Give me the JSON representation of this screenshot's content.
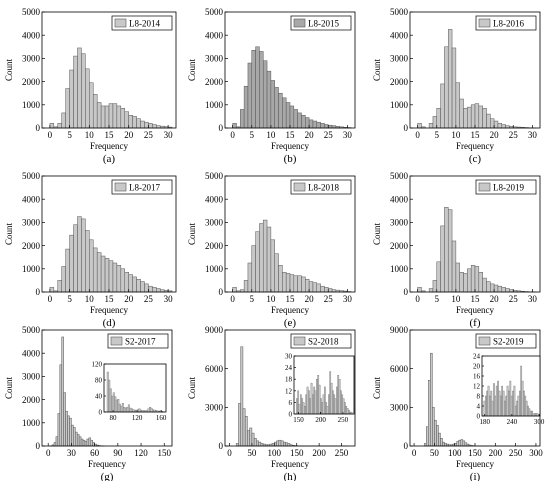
{
  "figure": {
    "background": "#ffffff",
    "bar_fill": "#c8c8c8",
    "bar_fill_dark": "#a8a8a8",
    "bar_stroke": "#555555"
  },
  "chart_data": [
    {
      "type": "bar",
      "panel_label": "(a)",
      "legend": "L8-2014",
      "xlabel": "Frequency",
      "ylabel": "Count",
      "xlim": [
        -2,
        32
      ],
      "xticks": [
        0,
        5,
        10,
        15,
        20,
        25,
        30
      ],
      "ylim": [
        0,
        5000
      ],
      "yticks": [
        0,
        1000,
        2000,
        3000,
        4000,
        5000
      ],
      "bin_start": 0,
      "bin_width": 1,
      "values": [
        200,
        50,
        200,
        650,
        1700,
        2500,
        3100,
        3450,
        3200,
        2550,
        1950,
        1450,
        1100,
        950,
        950,
        1050,
        1050,
        950,
        850,
        700,
        550,
        500,
        400,
        300,
        250,
        200,
        150,
        100,
        80,
        60,
        40
      ],
      "legend_position": "top-right"
    },
    {
      "type": "bar",
      "panel_label": "(b)",
      "legend": "L8-2015",
      "xlabel": "Frequency",
      "ylabel": "Count",
      "xlim": [
        -2,
        32
      ],
      "xticks": [
        0,
        5,
        10,
        15,
        20,
        25,
        30
      ],
      "ylim": [
        0,
        5000
      ],
      "yticks": [
        0,
        1000,
        2000,
        3000,
        4000,
        5000
      ],
      "bin_start": 0,
      "bin_width": 1,
      "values": [
        200,
        50,
        800,
        1800,
        2800,
        3350,
        3500,
        3300,
        2900,
        2450,
        2050,
        1750,
        1500,
        1300,
        1100,
        950,
        800,
        650,
        550,
        450,
        350,
        300,
        250,
        200,
        150,
        120,
        100,
        70,
        50,
        30,
        20
      ],
      "legend_position": "top-right"
    },
    {
      "type": "bar",
      "panel_label": "(c)",
      "legend": "L8-2016",
      "xlabel": "Frequency",
      "ylabel": "Count",
      "xlim": [
        -2,
        32
      ],
      "xticks": [
        0,
        5,
        10,
        15,
        20,
        25,
        30
      ],
      "ylim": [
        0,
        5000
      ],
      "yticks": [
        0,
        1000,
        2000,
        3000,
        4000,
        5000
      ],
      "bin_start": 0,
      "bin_width": 1,
      "values": [
        200,
        50,
        0,
        200,
        500,
        850,
        1900,
        3500,
        4250,
        3450,
        1950,
        1250,
        850,
        900,
        1000,
        1050,
        950,
        850,
        600,
        400,
        300,
        200,
        150,
        100,
        70,
        50,
        40,
        30,
        20,
        10,
        5
      ],
      "legend_position": "top-right"
    },
    {
      "type": "bar",
      "panel_label": "(d)",
      "legend": "L8-2017",
      "xlabel": "Frequency",
      "ylabel": "Count",
      "xlim": [
        -2,
        32
      ],
      "xticks": [
        0,
        5,
        10,
        15,
        20,
        25,
        30
      ],
      "ylim": [
        0,
        5000
      ],
      "yticks": [
        0,
        1000,
        2000,
        3000,
        4000,
        5000
      ],
      "bin_start": 0,
      "bin_width": 1,
      "values": [
        200,
        50,
        500,
        1100,
        1850,
        2450,
        2900,
        3250,
        3150,
        2650,
        2250,
        1900,
        1700,
        1550,
        1450,
        1350,
        1250,
        1150,
        1000,
        850,
        750,
        650,
        550,
        450,
        350,
        250,
        200,
        150,
        100,
        70,
        50
      ],
      "legend_position": "top-right"
    },
    {
      "type": "bar",
      "panel_label": "(e)",
      "legend": "L8-2018",
      "xlabel": "Frequency",
      "ylabel": "Count",
      "xlim": [
        -2,
        32
      ],
      "xticks": [
        0,
        5,
        10,
        15,
        20,
        25,
        30
      ],
      "ylim": [
        0,
        5000
      ],
      "yticks": [
        0,
        1000,
        2000,
        3000,
        4000,
        5000
      ],
      "bin_start": 0,
      "bin_width": 1,
      "values": [
        200,
        50,
        100,
        500,
        1250,
        2000,
        2600,
        2950,
        3100,
        2800,
        2250,
        1650,
        1150,
        850,
        800,
        750,
        700,
        700,
        650,
        550,
        450,
        400,
        350,
        250,
        200,
        150,
        100,
        80,
        60,
        40,
        20
      ],
      "legend_position": "top-right"
    },
    {
      "type": "bar",
      "panel_label": "(f)",
      "legend": "L8-2019",
      "xlabel": "Frequency",
      "ylabel": "Count",
      "xlim": [
        -2,
        32
      ],
      "xticks": [
        0,
        5,
        10,
        15,
        20,
        25,
        30
      ],
      "ylim": [
        0,
        5000
      ],
      "yticks": [
        0,
        1000,
        2000,
        3000,
        4000,
        5000
      ],
      "bin_start": 0,
      "bin_width": 1,
      "values": [
        200,
        50,
        0,
        150,
        500,
        1300,
        2850,
        3650,
        3550,
        2200,
        1250,
        850,
        800,
        1000,
        1150,
        1100,
        850,
        600,
        450,
        350,
        300,
        250,
        200,
        150,
        100,
        70,
        50,
        30,
        20,
        10,
        5
      ],
      "legend_position": "top-right"
    },
    {
      "type": "bar",
      "panel_label": "(g)",
      "legend": "S2-2017",
      "xlabel": "Frequency",
      "ylabel": "Count",
      "xlim": [
        -8,
        160
      ],
      "xticks": [
        0,
        30,
        60,
        90,
        120,
        150
      ],
      "ylim": [
        0,
        5000
      ],
      "yticks": [
        0,
        1000,
        2000,
        3000,
        4000,
        5000
      ],
      "bin_start": 0,
      "bin_width": 2.5,
      "values": [
        0,
        10,
        50,
        150,
        400,
        1400,
        3500,
        4700,
        2300,
        1500,
        1300,
        1200,
        900,
        800,
        600,
        500,
        400,
        300,
        250,
        200,
        300,
        350,
        250,
        150,
        80,
        40,
        20,
        10,
        5
      ],
      "legend_position": "top-right",
      "inset": {
        "xlim": [
          65,
          168
        ],
        "xticks": [
          80,
          120,
          160
        ],
        "ylim": [
          0,
          120
        ],
        "yticks": [
          0,
          40,
          80,
          120
        ],
        "bin_start": 70,
        "bin_width": 2.5,
        "values": [
          100,
          80,
          58,
          40,
          48,
          38,
          30,
          32,
          20,
          15,
          22,
          12,
          10,
          12,
          18,
          10,
          8,
          6,
          5,
          4,
          6,
          8,
          5,
          4,
          3,
          4,
          3,
          8,
          12,
          10,
          6,
          5,
          4,
          3,
          2,
          3,
          2,
          1
        ]
      }
    },
    {
      "type": "bar",
      "panel_label": "(h)",
      "legend": "S2-2018",
      "xlabel": "Frequency",
      "ylabel": "Count",
      "xlim": [
        -10,
        280
      ],
      "xticks": [
        0,
        50,
        100,
        150,
        200,
        250
      ],
      "ylim": [
        0,
        9000
      ],
      "yticks": [
        0,
        3000,
        6000,
        9000
      ],
      "bin_start": 0,
      "bin_width": 5,
      "values": [
        0,
        0,
        0,
        200,
        3300,
        7700,
        2900,
        2300,
        1200,
        1400,
        1000,
        600,
        400,
        300,
        200,
        150,
        100,
        100,
        150,
        200,
        300,
        400,
        450,
        400,
        300,
        250,
        200,
        100,
        50,
        30,
        20,
        15,
        10,
        10,
        8,
        8,
        6,
        6,
        5,
        5,
        4,
        4,
        3,
        3,
        3,
        2,
        2,
        2,
        2,
        2,
        1,
        1,
        1
      ],
      "legend_position": "top-right",
      "inset": {
        "xlim": [
          140,
          275
        ],
        "xticks": [
          150,
          200,
          250
        ],
        "ylim": [
          0,
          30
        ],
        "yticks": [
          0,
          6,
          12,
          18,
          24,
          30
        ],
        "bin_start": 145,
        "bin_width": 3,
        "values": [
          8,
          12,
          5,
          10,
          8,
          6,
          4,
          10,
          14,
          12,
          8,
          16,
          10,
          14,
          12,
          18,
          20,
          15,
          8,
          6,
          10,
          14,
          6,
          4,
          10,
          22,
          16,
          12,
          10,
          8,
          14,
          20,
          18,
          12,
          10,
          8,
          6,
          4,
          3,
          2,
          1,
          1
        ]
      }
    },
    {
      "type": "bar",
      "panel_label": "(i)",
      "legend": "S2-2019",
      "xlabel": "Frequency",
      "ylabel": "Count",
      "xlim": [
        -10,
        310
      ],
      "xticks": [
        0,
        50,
        100,
        150,
        200,
        250,
        300
      ],
      "ylim": [
        0,
        9000
      ],
      "yticks": [
        0,
        3000,
        6000,
        9000
      ],
      "bin_start": 0,
      "bin_width": 5,
      "values": [
        0,
        0,
        0,
        0,
        0,
        200,
        1500,
        5100,
        7200,
        3000,
        2000,
        1600,
        1000,
        600,
        300,
        200,
        150,
        100,
        100,
        150,
        200,
        350,
        450,
        500,
        400,
        250,
        150,
        80,
        40,
        20,
        10,
        8,
        6,
        5,
        4,
        4,
        3,
        3,
        3,
        2,
        2,
        2,
        2,
        2,
        1,
        1,
        1,
        1,
        1,
        1,
        1,
        1,
        1,
        1,
        1,
        1,
        1,
        1,
        1,
        1
      ],
      "legend_position": "top-right",
      "inset": {
        "xlim": [
          174,
          302
        ],
        "xticks": [
          180,
          240,
          300
        ],
        "ylim": [
          0,
          24
        ],
        "yticks": [
          0,
          4,
          8,
          12,
          16,
          20,
          24
        ],
        "bin_start": 178,
        "bin_width": 3,
        "values": [
          6,
          8,
          10,
          12,
          8,
          10,
          6,
          13,
          8,
          12,
          14,
          10,
          8,
          12,
          10,
          6,
          8,
          12,
          10,
          14,
          8,
          10,
          12,
          4,
          6,
          8,
          10,
          20,
          14,
          10,
          8,
          6,
          4,
          3,
          2,
          2,
          1,
          1,
          1,
          1
        ]
      }
    }
  ]
}
